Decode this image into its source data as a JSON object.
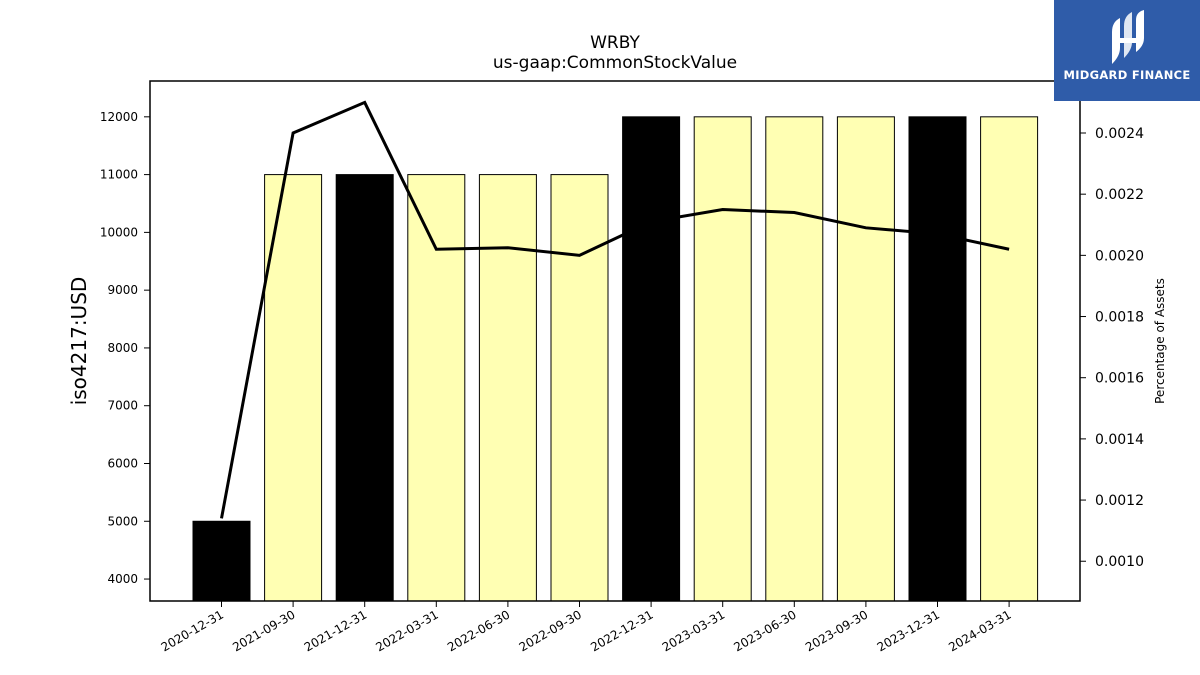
{
  "chart_data": {
    "type": "bar",
    "title": "WRBY",
    "subtitle": "us-gaap:CommonStockValue",
    "ylabel": "iso4217:USD",
    "ylabel_right": "Percentage of Assets",
    "categories": [
      "2020-12-31",
      "2021-09-30",
      "2021-12-31",
      "2022-03-31",
      "2022-06-30",
      "2022-09-30",
      "2022-12-31",
      "2023-03-31",
      "2023-06-30",
      "2023-09-30",
      "2023-12-31",
      "2024-03-31"
    ],
    "values": [
      5000,
      11000,
      11000,
      11000,
      11000,
      11000,
      12000,
      12000,
      12000,
      12000,
      12000,
      12000
    ],
    "bar_colors": [
      "#000000",
      "#ffffb3",
      "#000000",
      "#ffffb3",
      "#ffffb3",
      "#ffffb3",
      "#000000",
      "#ffffb3",
      "#ffffb3",
      "#ffffb3",
      "#000000",
      "#ffffb3"
    ],
    "ylim": [
      3620,
      12620
    ],
    "yticks": [
      4000,
      5000,
      6000,
      7000,
      8000,
      9000,
      10000,
      11000,
      12000
    ],
    "line_series": {
      "values": [
        0.00114,
        0.0024,
        0.0025,
        0.00202,
        0.002025,
        0.002,
        0.00211,
        0.00215,
        0.00214,
        0.00209,
        0.00207,
        0.00202
      ],
      "color": "#000000"
    },
    "y2lim": [
      0.00087,
      0.00257
    ],
    "y2ticks": [
      "0.0010",
      "0.0012",
      "0.0014",
      "0.0016",
      "0.0018",
      "0.0020",
      "0.0022",
      "0.0024"
    ],
    "grid": false
  },
  "logo": {
    "text": "MIDGARD FINANCE",
    "bg": "#2f5ca9"
  }
}
